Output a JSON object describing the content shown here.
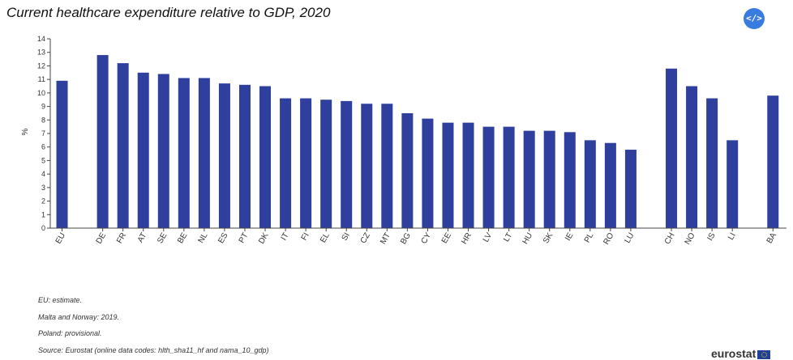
{
  "chart_data": {
    "type": "bar",
    "title": "Current healthcare expenditure relative to GDP, 2020",
    "xlabel": "",
    "ylabel": "%",
    "ylim": [
      0,
      14
    ],
    "yticks": [
      "0",
      "1",
      "2",
      "3",
      "4",
      "5",
      "6",
      "7",
      "8",
      "9",
      "10",
      "11",
      "12",
      "13",
      "14"
    ],
    "categories": [
      "EU",
      "",
      "DE",
      "FR",
      "AT",
      "SE",
      "BE",
      "NL",
      "ES",
      "PT",
      "DK",
      "IT",
      "FI",
      "EL",
      "SI",
      "CZ",
      "MT",
      "BG",
      "CY",
      "EE",
      "HR",
      "LV",
      "LT",
      "HU",
      "SK",
      "IE",
      "PL",
      "RO",
      "LU",
      "",
      "CH",
      "NO",
      "IS",
      "LI",
      "",
      "BA"
    ],
    "values": [
      10.9,
      null,
      12.8,
      12.2,
      11.5,
      11.4,
      11.1,
      11.1,
      10.7,
      10.6,
      10.5,
      9.6,
      9.6,
      9.5,
      9.4,
      9.2,
      9.2,
      8.5,
      8.1,
      7.8,
      7.8,
      7.5,
      7.5,
      7.2,
      7.2,
      7.1,
      6.5,
      6.3,
      5.8,
      null,
      11.8,
      10.5,
      9.6,
      6.5,
      null,
      9.8
    ],
    "bar_color": "#2e3f9e",
    "grid": false
  },
  "header": {
    "embed_label": "</>"
  },
  "footnotes": [
    "EU: estimate.",
    "Malta and Norway: 2019.",
    "Poland: provisional.",
    "Source: Eurostat (online data codes: hlth_sha11_hf and nama_10_gdp)"
  ],
  "brand": {
    "name": "eurostat"
  }
}
